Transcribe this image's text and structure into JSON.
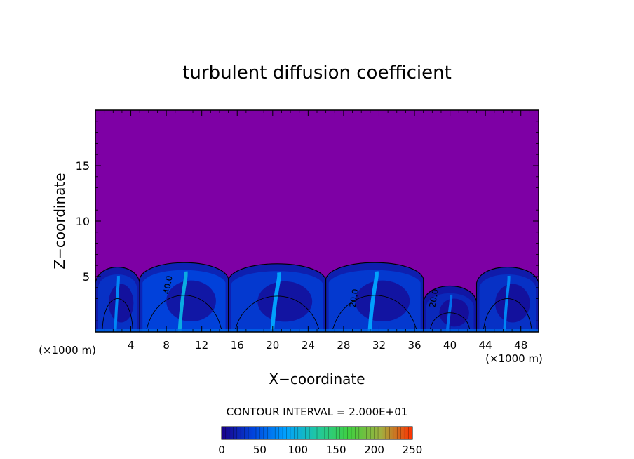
{
  "chart_data": {
    "type": "heatmap",
    "title": "turbulent diffusion coefficient",
    "xlabel": "X−coordinate",
    "ylabel": "Z−coordinate",
    "x_unit": "(×1000 m)",
    "z_unit": "(×1000 m)",
    "xlim": [
      0,
      50
    ],
    "ylim": [
      0,
      20
    ],
    "x_ticks": [
      4,
      8,
      12,
      16,
      20,
      24,
      28,
      32,
      36,
      40,
      44,
      48
    ],
    "y_ticks": [
      5,
      10,
      15
    ],
    "contour_interval_text": "CONTOUR INTERVAL = 2.000E+01",
    "contour_interval": 20,
    "contour_labels": [
      {
        "x": 8.5,
        "z": 4.2,
        "text": "40.0"
      },
      {
        "x": 29.5,
        "z": 3.0,
        "text": "20.0"
      },
      {
        "x": 38.5,
        "z": 3.0,
        "text": "20.0"
      }
    ],
    "colorbar": {
      "min": 0,
      "max": 250,
      "ticks": [
        0,
        50,
        100,
        150,
        200,
        250
      ],
      "colors": [
        "#1a0088",
        "#0044dd",
        "#00a0ff",
        "#20c8a0",
        "#40d040",
        "#a0b040",
        "#ff3000"
      ]
    },
    "background_color": "#7e00a5",
    "turbulent_cells": [
      {
        "x_start": 0,
        "x_end": 5,
        "top_z": 6.2,
        "core": 30
      },
      {
        "x_start": 5,
        "x_end": 15,
        "top_z": 6.6,
        "core": 40
      },
      {
        "x_start": 15,
        "x_end": 26,
        "top_z": 6.5,
        "core": 35
      },
      {
        "x_start": 26,
        "x_end": 37,
        "top_z": 6.6,
        "core": 35
      },
      {
        "x_start": 37,
        "x_end": 43,
        "top_z": 4.5,
        "core": 25
      },
      {
        "x_start": 43,
        "x_end": 50,
        "top_z": 6.2,
        "core": 30
      }
    ]
  }
}
